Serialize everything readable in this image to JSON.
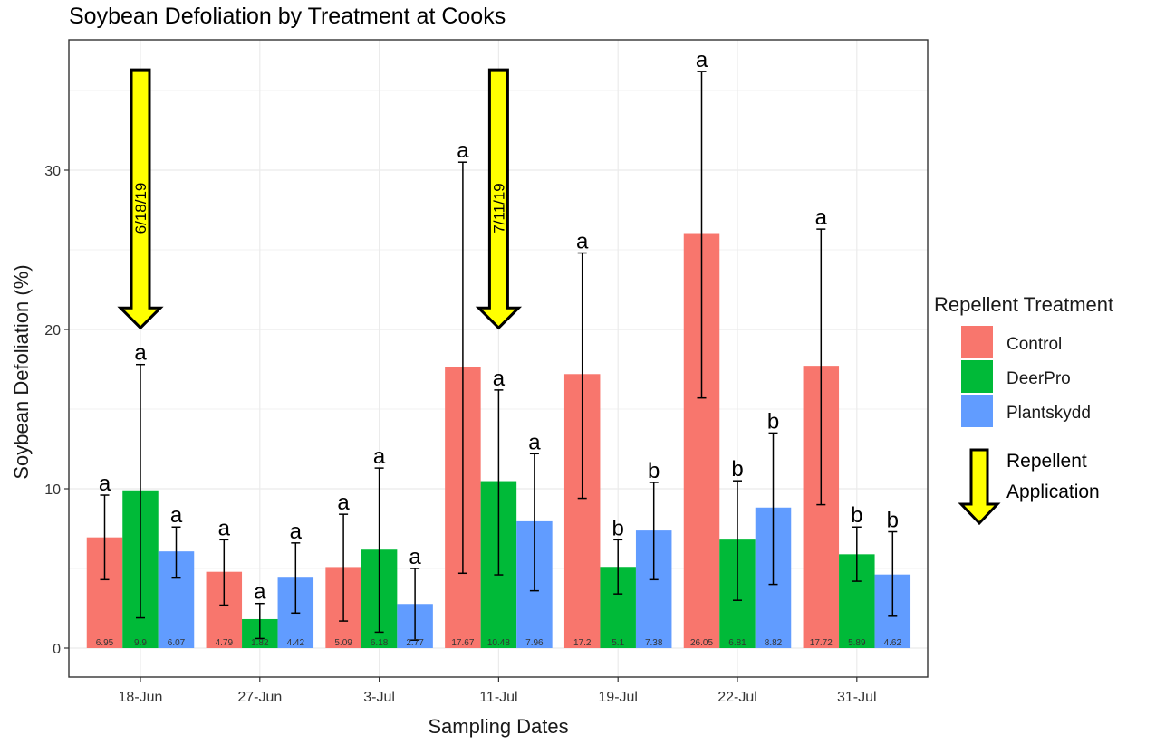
{
  "chart_data": {
    "type": "bar",
    "title": "Soybean Defoliation by Treatment at Cooks",
    "xlabel": "Sampling Dates",
    "ylabel": "Soybean Defoliation (%)",
    "ylim": [
      -1.6,
      38.3
    ],
    "yticks": [
      0,
      10,
      20,
      30
    ],
    "grid": true,
    "categories": [
      "18-Jun",
      "27-Jun",
      "3-Jul",
      "11-Jul",
      "19-Jul",
      "22-Jul",
      "31-Jul"
    ],
    "legend": {
      "title": "Repellent Treatment",
      "placement": "right"
    },
    "series": [
      {
        "name": "Control",
        "color": "#F8766D",
        "values": [
          6.95,
          4.79,
          5.09,
          17.67,
          17.2,
          26.05,
          17.72
        ],
        "err_low": [
          4.3,
          2.7,
          1.7,
          4.7,
          9.4,
          15.7,
          9.0
        ],
        "err_high": [
          9.6,
          6.8,
          8.4,
          30.5,
          24.8,
          36.2,
          26.3
        ],
        "letters": [
          "a",
          "a",
          "a",
          "a",
          "a",
          "a",
          "a"
        ]
      },
      {
        "name": "DeerPro",
        "color": "#00BA38",
        "values": [
          9.9,
          1.82,
          6.18,
          10.48,
          5.1,
          6.81,
          5.89
        ],
        "err_low": [
          1.9,
          0.6,
          1.0,
          4.6,
          3.4,
          3.0,
          4.2
        ],
        "err_high": [
          17.8,
          2.8,
          11.3,
          16.2,
          6.8,
          10.5,
          7.6
        ],
        "letters": [
          "a",
          "a",
          "a",
          "a",
          "b",
          "b",
          "b"
        ]
      },
      {
        "name": "Plantskydd",
        "color": "#619CFF",
        "values": [
          6.07,
          4.42,
          2.77,
          7.96,
          7.38,
          8.82,
          4.62
        ],
        "err_low": [
          4.4,
          2.2,
          0.5,
          3.6,
          4.3,
          4.0,
          2.0
        ],
        "err_high": [
          7.6,
          6.6,
          5.0,
          12.2,
          10.4,
          13.5,
          7.3
        ],
        "letters": [
          "a",
          "a",
          "a",
          "a",
          "b",
          "b",
          "b"
        ]
      }
    ],
    "annotations": [
      {
        "type": "arrow",
        "label": "6/18/19",
        "category": "18-Jun",
        "y_from": 36.3,
        "y_to": 20.1,
        "color": "#FFFF00"
      },
      {
        "type": "arrow",
        "label": "7/11/19",
        "category": "11-Jul",
        "y_from": 36.3,
        "y_to": 20.1,
        "color": "#FFFF00"
      }
    ],
    "extra_legend": {
      "arrow_color": "#FFFF00",
      "lines": [
        "Repellent",
        "Application"
      ]
    }
  }
}
